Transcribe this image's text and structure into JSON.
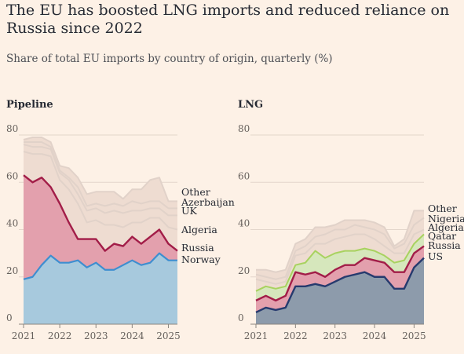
{
  "title": "The EU has boosted LNG imports and reduced reliance on Russia since 2022",
  "subtitle": "Share of total EU imports by country of origin, quarterly (%)",
  "colors": {
    "norway": "#a7c9dd",
    "russia_fill": "#e3a0ad",
    "russia_line": "#a21d48",
    "other_fill": "#eedcd1",
    "bound_line": "#e1d2c9",
    "blue_line": "#3e8ed0",
    "us_line": "#263a6e",
    "us_fill": "#8d9bab",
    "green_fill": "#d6e7bc",
    "green_line": "#a8d25f"
  },
  "chart_data": [
    {
      "type": "area",
      "title": "Pipeline",
      "ylim": [
        0,
        80
      ],
      "yticks": [
        "0",
        "20",
        "40",
        "60",
        "80"
      ],
      "xticks": [
        "2021",
        "2022",
        "2023",
        "2024",
        "2025"
      ],
      "grid": true,
      "x": [
        "2021Q1",
        "2021Q2",
        "2021Q3",
        "2021Q4",
        "2022Q1",
        "2022Q2",
        "2022Q3",
        "2022Q4",
        "2023Q1",
        "2023Q2",
        "2023Q3",
        "2023Q4",
        "2024Q1",
        "2024Q2",
        "2024Q3",
        "2024Q4",
        "2025Q1",
        "2025Q2"
      ],
      "series": [
        {
          "name": "Norway",
          "values": [
            19,
            20,
            25,
            29,
            26,
            26,
            27,
            24,
            26,
            23,
            23,
            25,
            27,
            25,
            26,
            30,
            27,
            27
          ]
        },
        {
          "name": "Russia",
          "values": [
            63,
            60,
            62,
            58,
            51,
            43,
            36,
            36,
            36,
            31,
            34,
            33,
            37,
            34,
            37,
            40,
            34,
            31
          ]
        },
        {
          "name": "Algeria",
          "values": [
            73,
            72,
            72,
            71,
            61,
            57,
            51,
            43,
            44,
            42,
            42,
            41,
            43,
            43,
            45,
            45,
            41,
            40
          ]
        },
        {
          "name": "UK",
          "values": [
            76,
            75,
            75,
            74,
            64,
            61,
            55,
            48,
            49,
            47,
            48,
            47,
            48,
            48,
            49,
            49,
            46,
            46
          ]
        },
        {
          "name": "Azerbaijan",
          "values": [
            77,
            77,
            77,
            75,
            65,
            62,
            58,
            50,
            51,
            50,
            51,
            50,
            52,
            51,
            52,
            52,
            49,
            49
          ]
        },
        {
          "name": "Other",
          "values": [
            78,
            79,
            79,
            77,
            67,
            66,
            62,
            55,
            56,
            56,
            56,
            53,
            57,
            57,
            61,
            62,
            52,
            52
          ]
        }
      ]
    },
    {
      "type": "area",
      "title": "LNG",
      "ylim": [
        0,
        80
      ],
      "yticks": [
        "0",
        "20",
        "40",
        "60",
        "80"
      ],
      "xticks": [
        "2021",
        "2022",
        "2023",
        "2024",
        "2025"
      ],
      "grid": true,
      "x": [
        "2021Q1",
        "2021Q2",
        "2021Q3",
        "2021Q4",
        "2022Q1",
        "2022Q2",
        "2022Q3",
        "2022Q4",
        "2023Q1",
        "2023Q2",
        "2023Q3",
        "2023Q4",
        "2024Q1",
        "2024Q2",
        "2024Q3",
        "2024Q4",
        "2025Q1",
        "2025Q2"
      ],
      "series": [
        {
          "name": "US",
          "values": [
            5,
            7,
            6,
            7,
            16,
            16,
            17,
            16,
            18,
            20,
            21,
            22,
            20,
            20,
            15,
            15,
            24,
            28
          ]
        },
        {
          "name": "Russia",
          "values": [
            10,
            12,
            10,
            12,
            22,
            21,
            22,
            20,
            23,
            25,
            25,
            28,
            27,
            26,
            22,
            22,
            30,
            33
          ]
        },
        {
          "name": "Qatar",
          "values": [
            14,
            16,
            15,
            16,
            25,
            26,
            31,
            28,
            30,
            31,
            31,
            32,
            31,
            29,
            26,
            27,
            34,
            38
          ]
        },
        {
          "name": "Algeria",
          "values": [
            19,
            18,
            17,
            18,
            29,
            30,
            34,
            34,
            36,
            37,
            38,
            38,
            36,
            33,
            30,
            30,
            38,
            40
          ]
        },
        {
          "name": "Nigeria",
          "values": [
            21,
            20,
            19,
            20,
            31,
            33,
            37,
            38,
            40,
            40,
            42,
            41,
            40,
            38,
            32,
            34,
            42,
            45
          ]
        },
        {
          "name": "Other",
          "values": [
            23,
            23,
            22,
            23,
            34,
            36,
            41,
            41,
            42,
            44,
            44,
            44,
            43,
            41,
            33,
            36,
            48,
            48
          ]
        }
      ]
    }
  ]
}
